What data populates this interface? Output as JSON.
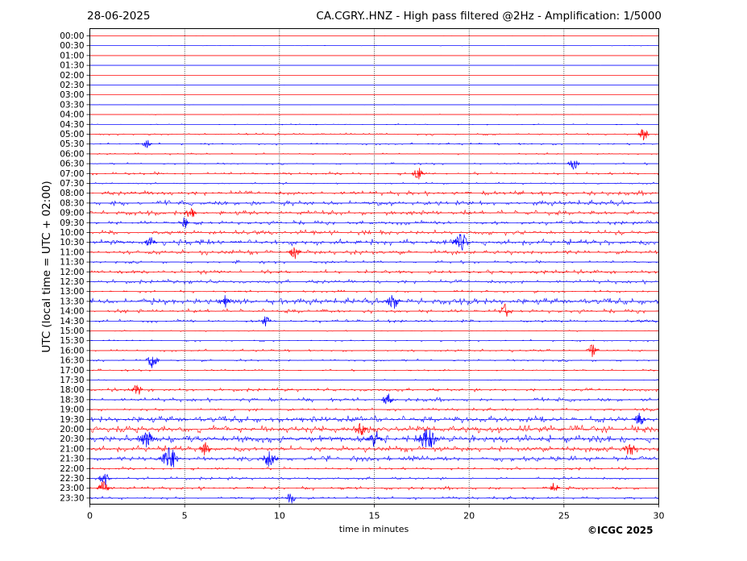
{
  "header": {
    "date": "28-06-2025",
    "title": "CA.CGRY..HNZ - High pass filtered @2Hz - Amplification: 1/5000"
  },
  "footer": {
    "copyright": "©ICGC 2025"
  },
  "chart_data": {
    "type": "line",
    "title": "CA.CGRY..HNZ - High pass filtered @2Hz - Amplification: 1/5000",
    "xlabel": "time in minutes",
    "ylabel": "UTC (local time = UTC + 02:00)",
    "xlim": [
      0,
      30
    ],
    "x_ticks": [
      0,
      5,
      10,
      15,
      20,
      25,
      30
    ],
    "vertical_gridlines_at": [
      5,
      10,
      15,
      20,
      25
    ],
    "row_labels": [
      "00:00",
      "00:30",
      "01:00",
      "01:30",
      "02:00",
      "02:30",
      "03:00",
      "03:30",
      "04:00",
      "04:30",
      "05:00",
      "05:30",
      "06:00",
      "06:30",
      "07:00",
      "07:30",
      "08:00",
      "08:30",
      "09:00",
      "09:30",
      "10:00",
      "10:30",
      "11:00",
      "11:30",
      "12:00",
      "12:30",
      "13:00",
      "13:30",
      "14:00",
      "14:30",
      "15:00",
      "15:30",
      "16:00",
      "16:30",
      "17:00",
      "17:30",
      "18:00",
      "18:30",
      "19:00",
      "19:30",
      "20:00",
      "20:30",
      "21:00",
      "21:30",
      "22:00",
      "22:30",
      "23:00",
      "23:30"
    ],
    "row_colors": [
      "#ff0000",
      "#0000ff"
    ],
    "activity": [
      0.02,
      0.05,
      0.01,
      0.01,
      0.01,
      0.01,
      0.01,
      0.05,
      0.08,
      0.12,
      0.25,
      0.22,
      0.18,
      0.2,
      0.3,
      0.2,
      0.45,
      0.5,
      0.45,
      0.4,
      0.45,
      0.55,
      0.45,
      0.3,
      0.4,
      0.4,
      0.25,
      0.6,
      0.4,
      0.3,
      0.15,
      0.2,
      0.25,
      0.25,
      0.2,
      0.15,
      0.35,
      0.4,
      0.3,
      0.6,
      0.65,
      0.7,
      0.55,
      0.5,
      0.3,
      0.3,
      0.35,
      0.3
    ],
    "events": [
      {
        "row": 10,
        "x": 29.2,
        "amp": 0.7
      },
      {
        "row": 11,
        "x": 3.0,
        "amp": 0.5
      },
      {
        "row": 13,
        "x": 25.5,
        "amp": 0.8
      },
      {
        "row": 14,
        "x": 17.3,
        "amp": 0.8
      },
      {
        "row": 18,
        "x": 5.3,
        "amp": 0.8
      },
      {
        "row": 19,
        "x": 5.0,
        "amp": 0.6
      },
      {
        "row": 21,
        "x": 3.2,
        "amp": 0.8
      },
      {
        "row": 21,
        "x": 19.6,
        "amp": 1.3
      },
      {
        "row": 22,
        "x": 10.8,
        "amp": 0.8
      },
      {
        "row": 27,
        "x": 7.1,
        "amp": 0.8
      },
      {
        "row": 27,
        "x": 16.0,
        "amp": 1.1
      },
      {
        "row": 28,
        "x": 21.9,
        "amp": 0.9
      },
      {
        "row": 29,
        "x": 9.3,
        "amp": 0.6
      },
      {
        "row": 33,
        "x": 3.3,
        "amp": 1.0
      },
      {
        "row": 32,
        "x": 26.5,
        "amp": 0.8
      },
      {
        "row": 36,
        "x": 2.5,
        "amp": 0.7
      },
      {
        "row": 37,
        "x": 15.7,
        "amp": 0.8
      },
      {
        "row": 39,
        "x": 29.0,
        "amp": 0.8
      },
      {
        "row": 40,
        "x": 14.3,
        "amp": 0.8
      },
      {
        "row": 41,
        "x": 3.0,
        "amp": 1.2
      },
      {
        "row": 41,
        "x": 15.0,
        "amp": 1.3
      },
      {
        "row": 41,
        "x": 17.8,
        "amp": 1.8
      },
      {
        "row": 42,
        "x": 28.5,
        "amp": 1.0
      },
      {
        "row": 42,
        "x": 6.1,
        "amp": 0.9
      },
      {
        "row": 43,
        "x": 4.2,
        "amp": 1.8
      },
      {
        "row": 43,
        "x": 9.5,
        "amp": 1.3
      },
      {
        "row": 45,
        "x": 0.8,
        "amp": 0.9
      },
      {
        "row": 46,
        "x": 0.7,
        "amp": 0.9
      },
      {
        "row": 46,
        "x": 24.5,
        "amp": 0.7
      },
      {
        "row": 47,
        "x": 10.6,
        "amp": 0.7
      }
    ]
  }
}
